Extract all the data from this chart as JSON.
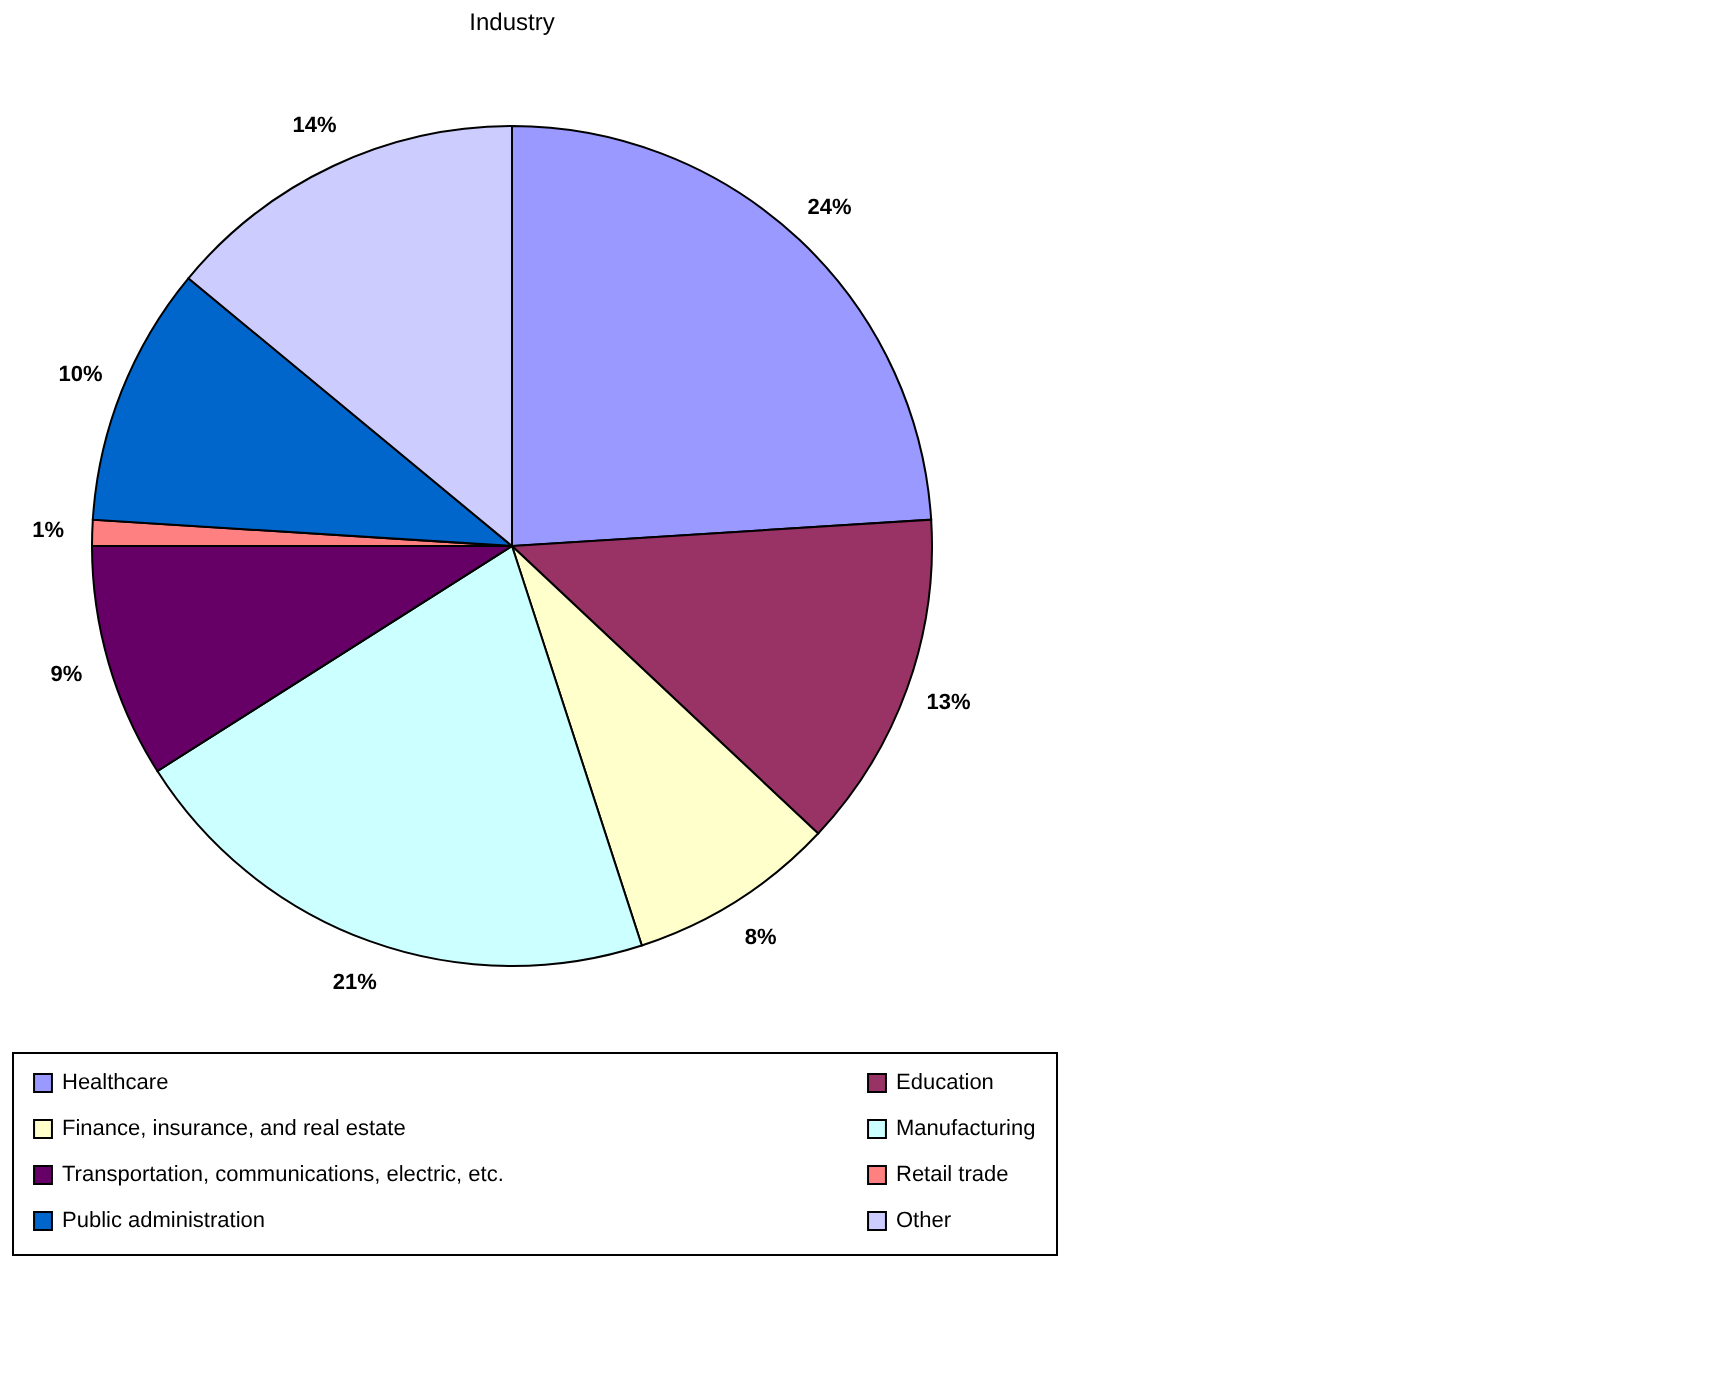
{
  "chart_data": {
    "type": "pie",
    "title": "Industry",
    "categories": [
      "Healthcare",
      "Education",
      "Finance, insurance, and real estate",
      "Manufacturing",
      "Transportation, communications, electric, etc.",
      "Retail trade",
      "Public administration",
      "Other"
    ],
    "values": [
      24,
      13,
      8,
      21,
      9,
      1,
      10,
      14
    ],
    "value_labels": [
      "24%",
      "13%",
      "8%",
      "21%",
      "9%",
      "1%",
      "10%",
      "14%"
    ],
    "colors": [
      "#9999ff",
      "#993366",
      "#ffffcc",
      "#ccffff",
      "#660066",
      "#ff8080",
      "#0066cc",
      "#ccccff"
    ],
    "legend": "bottom"
  }
}
